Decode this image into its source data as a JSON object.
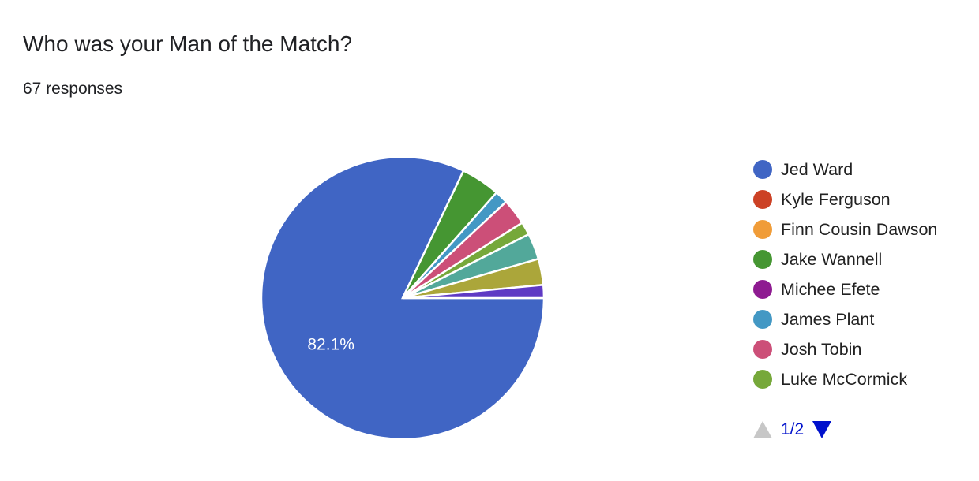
{
  "header": {
    "title": "Who was your Man of the Match?",
    "responses": "67 responses"
  },
  "legend_page": "1/2",
  "chart_data": {
    "type": "pie",
    "title": "Who was your Man of the Match?",
    "total": 67,
    "start_angle_deg": 90,
    "direction": "clockwise",
    "legend_placement": "right",
    "slices": [
      {
        "name": "Jed Ward",
        "value": 55,
        "color": "#4065c4",
        "label": "82.1%"
      },
      {
        "name": "Kyle Ferguson",
        "value": 0,
        "color": "#cc4125"
      },
      {
        "name": "Finn Cousin Dawson",
        "value": 0,
        "color": "#f09c38"
      },
      {
        "name": "Jake Wannell",
        "value": 3,
        "color": "#459632"
      },
      {
        "name": "Michee Efete",
        "value": 0,
        "color": "#8e1b91"
      },
      {
        "name": "James Plant",
        "value": 1,
        "color": "#4398c4"
      },
      {
        "name": "Josh Tobin",
        "value": 2,
        "color": "#cc4f78"
      },
      {
        "name": "Luke McCormick",
        "value": 1,
        "color": "#76a83a"
      },
      {
        "name": "",
        "value": 2,
        "color": "#52a89a"
      },
      {
        "name": "",
        "value": 2,
        "color": "#aba63a"
      },
      {
        "name": "",
        "value": 1,
        "color": "#5f3ac4"
      }
    ]
  }
}
